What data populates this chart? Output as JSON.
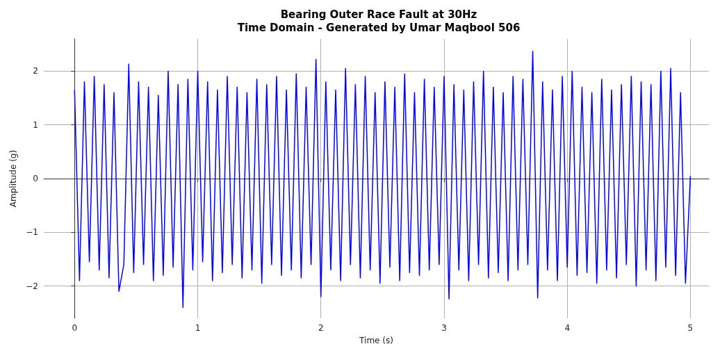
{
  "chart_data": {
    "type": "line",
    "title": "Bearing Outer Race Fault at 30Hz\nTime Domain - Generated by Umar Maqbool 506",
    "xlabel": "Time (s)",
    "ylabel": "Amplitude (g)",
    "x": [
      0,
      0.04,
      0.08,
      0.12,
      0.16,
      0.2,
      0.24,
      0.28,
      0.32,
      0.36,
      0.4,
      0.44,
      0.48,
      0.52,
      0.56,
      0.6,
      0.64,
      0.68,
      0.72,
      0.76,
      0.8,
      0.84,
      0.88,
      0.92,
      0.96,
      1,
      1.04,
      1.08,
      1.12,
      1.16,
      1.2,
      1.24,
      1.28,
      1.32,
      1.36,
      1.4,
      1.44,
      1.48,
      1.52,
      1.56,
      1.6,
      1.64,
      1.68,
      1.72,
      1.76,
      1.8,
      1.84,
      1.88,
      1.92,
      1.96,
      2,
      2.04,
      2.08,
      2.12,
      2.16,
      2.2,
      2.24,
      2.28,
      2.32,
      2.36,
      2.4,
      2.44,
      2.48,
      2.52,
      2.56,
      2.6,
      2.64,
      2.68,
      2.72,
      2.76,
      2.8,
      2.84,
      2.88,
      2.92,
      2.96,
      3,
      3.04,
      3.08,
      3.12,
      3.16,
      3.2,
      3.24,
      3.28,
      3.32,
      3.36,
      3.4,
      3.44,
      3.48,
      3.52,
      3.56,
      3.6,
      3.64,
      3.68,
      3.72,
      3.76,
      3.8,
      3.84,
      3.88,
      3.92,
      3.96,
      4,
      4.04,
      4.08,
      4.12,
      4.16,
      4.2,
      4.24,
      4.28,
      4.32,
      4.36,
      4.4,
      4.44,
      4.48,
      4.52,
      4.56,
      4.6,
      4.64,
      4.68,
      4.72,
      4.76,
      4.8,
      4.84,
      4.88,
      4.92,
      4.96,
      5
    ],
    "series": [
      {
        "color": "#0000ff",
        "values": [
          1.65,
          -1.9,
          1.8,
          -1.55,
          1.9,
          -1.7,
          1.75,
          -1.85,
          1.6,
          -2.1,
          -1.6,
          2.13,
          -1.75,
          1.8,
          -1.6,
          1.7,
          -1.9,
          1.55,
          -1.8,
          2.0,
          -1.65,
          1.75,
          -2.4,
          1.85,
          -1.7,
          2.0,
          -1.55,
          1.8,
          -1.9,
          1.65,
          -1.75,
          1.9,
          -1.6,
          1.7,
          -1.85,
          1.6,
          -1.7,
          1.85,
          -1.95,
          1.75,
          -1.6,
          1.9,
          -1.8,
          1.65,
          -1.7,
          1.95,
          -1.85,
          1.7,
          -1.6,
          2.22,
          -2.2,
          1.8,
          -1.7,
          1.65,
          -1.9,
          2.05,
          -1.6,
          1.75,
          -1.85,
          1.9,
          -1.7,
          1.6,
          -1.95,
          1.8,
          -1.65,
          1.7,
          -1.9,
          1.95,
          -1.75,
          1.6,
          -1.8,
          1.85,
          -1.7,
          1.7,
          -1.6,
          1.9,
          -2.24,
          1.75,
          -1.7,
          1.65,
          -1.9,
          1.8,
          -1.6,
          2.0,
          -1.85,
          1.7,
          -1.75,
          1.6,
          -1.9,
          1.9,
          -1.7,
          1.85,
          -1.6,
          2.37,
          -2.22,
          1.8,
          -1.7,
          1.65,
          -1.9,
          1.9,
          -1.65,
          2.0,
          -1.8,
          1.7,
          -1.75,
          1.6,
          -1.95,
          1.85,
          -1.7,
          1.65,
          -1.85,
          1.75,
          -1.6,
          1.9,
          -2.0,
          1.8,
          -1.7,
          1.75,
          -1.9,
          2.0,
          -1.65,
          2.05,
          -1.8,
          1.6,
          -1.95,
          0.05
        ]
      }
    ],
    "xlim": [
      -0.25,
      5.15
    ],
    "xticks": [
      0,
      1,
      2,
      3,
      4,
      5
    ],
    "ylim": [
      -2.6,
      2.6
    ],
    "yticks": [
      -2,
      -1,
      0,
      1,
      2
    ],
    "grid": true,
    "line_style": "solid",
    "marker": "none"
  }
}
